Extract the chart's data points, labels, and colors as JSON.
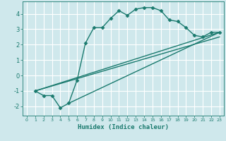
{
  "xlabel": "Humidex (Indice chaleur)",
  "bg_color": "#cfe8ec",
  "grid_color": "#ffffff",
  "line_color": "#1a7a6e",
  "marker": "D",
  "marker_size": 2.5,
  "line_width": 1.0,
  "xlim": [
    -0.5,
    23.5
  ],
  "ylim": [
    -2.6,
    4.8
  ],
  "yticks": [
    -2,
    -1,
    0,
    1,
    2,
    3,
    4
  ],
  "xticks": [
    0,
    1,
    2,
    3,
    4,
    5,
    6,
    7,
    8,
    9,
    10,
    11,
    12,
    13,
    14,
    15,
    16,
    17,
    18,
    19,
    20,
    21,
    22,
    23
  ],
  "series": [
    {
      "x": [
        1,
        2,
        3,
        4,
        5,
        6,
        7,
        8,
        9,
        10,
        11,
        12,
        13,
        14,
        15,
        16,
        17,
        18,
        19,
        20,
        21,
        22,
        23
      ],
      "y": [
        -1.0,
        -1.3,
        -1.3,
        -2.1,
        -1.8,
        -0.3,
        2.1,
        3.1,
        3.1,
        3.7,
        4.2,
        3.9,
        4.3,
        4.4,
        4.4,
        4.2,
        3.6,
        3.5,
        3.1,
        2.6,
        2.5,
        2.8,
        2.8
      ],
      "has_markers": true
    },
    {
      "x": [
        1,
        23
      ],
      "y": [
        -1.0,
        2.8
      ],
      "has_markers": false
    },
    {
      "x": [
        1,
        23
      ],
      "y": [
        -1.0,
        2.5
      ],
      "has_markers": false
    },
    {
      "x": [
        5,
        23
      ],
      "y": [
        -1.8,
        2.8
      ],
      "has_markers": false
    }
  ]
}
